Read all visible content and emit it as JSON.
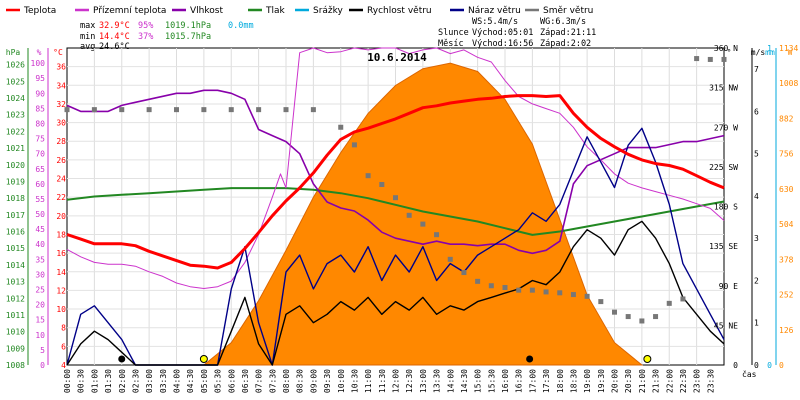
{
  "chart_data": {
    "type": "line",
    "title": "10.6.2014",
    "legend": [
      {
        "name": "Teplota",
        "color": "#ff0000"
      },
      {
        "name": "Přízemní teplota",
        "color": "#cc33cc"
      },
      {
        "name": "Vlhkost",
        "color": "#8800aa"
      },
      {
        "name": "Tlak",
        "color": "#228822"
      },
      {
        "name": "Srážky",
        "color": "#00aadd"
      },
      {
        "name": "Rychlost větru",
        "color": "#000000"
      },
      {
        "name": "Náraz větru",
        "color": "#000088"
      },
      {
        "name": "Směr větru",
        "color": "#777777"
      }
    ],
    "stats": {
      "max_label": "max",
      "max_temp": "32.9°C",
      "max_hum": "95%",
      "max_pres": "1019.1hPa",
      "max_rain": "0.0mm",
      "min_label": "min",
      "min_temp": "14.4°C",
      "min_hum": "37%",
      "min_pres": "1015.7hPa",
      "avg_label": "avg",
      "avg_temp": "24.6°C"
    },
    "info": {
      "ws": "WS:5.4m/s",
      "wg": "WG:6.3m/s",
      "sun_label": "Slunce",
      "sun_rise": "Východ:05:01",
      "sun_set": "Západ:21:11",
      "moon_label": "Měsíc",
      "moon_rise": "Východ:16:56",
      "moon_set": "Západ:2:02"
    },
    "x_label": "čas",
    "x_ticks": [
      "00:00",
      "00:30",
      "01:00",
      "01:30",
      "02:00",
      "02:30",
      "03:00",
      "03:30",
      "04:00",
      "04:30",
      "05:00",
      "05:30",
      "06:00",
      "06:30",
      "07:00",
      "07:30",
      "08:00",
      "08:30",
      "09:00",
      "09:30",
      "10:00",
      "10:30",
      "11:00",
      "11:30",
      "12:00",
      "12:30",
      "13:00",
      "13:30",
      "14:00",
      "14:30",
      "15:00",
      "15:30",
      "16:00",
      "16:30",
      "17:00",
      "17:30",
      "18:00",
      "18:30",
      "19:00",
      "19:30",
      "20:00",
      "20:30",
      "21:00",
      "21:30",
      "22:00",
      "22:30",
      "23:00",
      "23:30"
    ],
    "axes": {
      "pressure": {
        "unit": "hPa",
        "range": [
          1008,
          1027
        ],
        "ticks": [
          "1008",
          "1009",
          "1010",
          "1011",
          "1012",
          "1013",
          "1014",
          "1015",
          "1016",
          "1017",
          "1018",
          "1019",
          "1020",
          "1021",
          "1022",
          "1023",
          "1024",
          "1025",
          "1026"
        ]
      },
      "humidity": {
        "unit": "%",
        "range": [
          0,
          105
        ],
        "ticks": [
          "0",
          "5",
          "10",
          "15",
          "20",
          "25",
          "30",
          "35",
          "40",
          "45",
          "50",
          "55",
          "60",
          "65",
          "70",
          "75",
          "80",
          "85",
          "90",
          "95",
          "100"
        ]
      },
      "temperature": {
        "unit": "°C",
        "range": [
          4,
          38
        ],
        "ticks": [
          "4",
          "6",
          "8",
          "10",
          "12",
          "14",
          "16",
          "18",
          "20",
          "22",
          "24",
          "26",
          "28",
          "30",
          "32",
          "34",
          "36"
        ]
      },
      "direction": {
        "unit": "°",
        "range": [
          0,
          360
        ],
        "ticks": [
          "0",
          "45 NE",
          "90 E",
          "135 SE",
          "180 S",
          "225 SW",
          "270 W",
          "315 NW",
          "360 N"
        ]
      },
      "wind": {
        "unit": "m/s",
        "range": [
          0,
          7.5
        ],
        "ticks": [
          "0",
          "1",
          "2",
          "3",
          "4",
          "5",
          "6",
          "7"
        ]
      },
      "rain": {
        "unit": "mm",
        "range": [
          0,
          1
        ],
        "ticks": [
          "0",
          "1"
        ]
      },
      "solar": {
        "unit": "W",
        "range": [
          0,
          1134
        ],
        "ticks": [
          "0",
          "126",
          "252",
          "378",
          "504",
          "630",
          "756",
          "882",
          "1008",
          "1134"
        ]
      }
    },
    "series": [
      {
        "name": "Teplota",
        "axis": "temperature",
        "x": [
          0,
          0.5,
          1,
          1.5,
          2,
          2.5,
          3,
          3.5,
          4,
          4.5,
          5,
          5.5,
          6,
          6.5,
          7,
          7.5,
          8,
          8.5,
          9,
          9.5,
          10,
          10.5,
          11,
          11.5,
          12,
          12.5,
          13,
          13.5,
          14,
          14.5,
          15,
          15.5,
          16,
          16.5,
          17,
          17.5,
          18,
          18.5,
          19,
          19.5,
          20,
          20.5,
          21,
          21.5,
          22,
          22.5,
          23,
          23.5,
          24
        ],
        "values": [
          18,
          17.5,
          17,
          17,
          17,
          16.8,
          16.2,
          15.7,
          15.2,
          14.7,
          14.6,
          14.4,
          15,
          16.5,
          18.2,
          20,
          21.6,
          23,
          24.6,
          26.5,
          28.2,
          29,
          29.4,
          29.9,
          30.4,
          31,
          31.6,
          31.8,
          32.1,
          32.3,
          32.5,
          32.6,
          32.8,
          32.9,
          32.9,
          32.8,
          32.9,
          31,
          29.5,
          28.3,
          27.4,
          26.6,
          26,
          25.6,
          25.4,
          25,
          24.3,
          23.6,
          23
        ]
      },
      {
        "name": "Přízemní teplota",
        "axis": "temperature",
        "x": [
          0,
          0.5,
          1,
          1.5,
          2,
          2.5,
          3,
          3.5,
          4,
          4.5,
          5,
          5.5,
          6,
          6.5,
          7,
          7.5,
          7.8,
          8,
          8.5,
          9,
          9.5,
          10,
          10.5,
          11,
          11.5,
          12,
          12.5,
          13,
          13.5,
          14,
          14.5,
          15,
          15.5,
          16,
          16.5,
          17,
          17.5,
          18,
          18.5,
          19,
          19.5,
          20,
          20.5,
          21,
          21.5,
          22,
          22.5,
          23,
          23.5,
          24
        ],
        "values": [
          16.4,
          15.6,
          15,
          14.8,
          14.8,
          14.6,
          14,
          13.5,
          12.8,
          12.4,
          12.2,
          12.4,
          13,
          15,
          18,
          22,
          24.5,
          23,
          37.5,
          38,
          37.5,
          37.6,
          38,
          37.8,
          38,
          38,
          37.4,
          37.8,
          38,
          37.4,
          37.8,
          37,
          36.5,
          34.5,
          32.8,
          32,
          31.5,
          31,
          29.5,
          27.4,
          26,
          24.5,
          23.5,
          23,
          22.6,
          22.2,
          21.8,
          21.3,
          20.8,
          19.5
        ]
      },
      {
        "name": "Vlhkost",
        "axis": "humidity",
        "x": [
          0,
          0.5,
          1,
          1.5,
          2,
          2.5,
          3,
          3.5,
          4,
          4.5,
          5,
          5.5,
          6,
          6.5,
          7,
          7.5,
          8,
          8.5,
          9,
          9.5,
          10,
          10.5,
          11,
          11.5,
          12,
          12.5,
          13,
          13.5,
          14,
          14.5,
          15,
          15.5,
          16,
          16.5,
          17,
          17.5,
          18,
          18.5,
          19,
          19.5,
          20,
          20.5,
          21,
          21.5,
          22,
          22.5,
          23,
          23.5,
          24
        ],
        "values": [
          86,
          84,
          84,
          84,
          86,
          87,
          88,
          89,
          90,
          90,
          91,
          91,
          90,
          88,
          78,
          76,
          74,
          70,
          60,
          54,
          52,
          51,
          48,
          44,
          42,
          41,
          40,
          41,
          40,
          40,
          39.5,
          40,
          40,
          38,
          37,
          38,
          41,
          60,
          66,
          68,
          70,
          72,
          72,
          72,
          73,
          74,
          74,
          75,
          76
        ]
      },
      {
        "name": "Tlak",
        "axis": "pressure",
        "x": [
          0,
          1,
          2,
          3,
          4,
          5,
          6,
          7,
          8,
          9,
          10,
          11,
          12,
          13,
          14,
          15,
          16,
          17,
          18,
          19,
          20,
          21,
          22,
          23,
          24
        ],
        "values": [
          1017.9,
          1018.1,
          1018.2,
          1018.3,
          1018.4,
          1018.5,
          1018.6,
          1018.6,
          1018.6,
          1018.5,
          1018.3,
          1018.0,
          1017.6,
          1017.2,
          1016.9,
          1016.6,
          1016.2,
          1015.8,
          1016.0,
          1016.3,
          1016.6,
          1016.9,
          1017.2,
          1017.5,
          1017.8
        ]
      },
      {
        "name": "Rychlost větru",
        "axis": "wind",
        "x": [
          0,
          0.5,
          1,
          1.5,
          2,
          2.5,
          3,
          3.5,
          4,
          4.5,
          5,
          5.5,
          6,
          6.5,
          7,
          7.5,
          8,
          8.5,
          9,
          9.5,
          10,
          10.5,
          11,
          11.5,
          12,
          12.5,
          13,
          13.5,
          14,
          14.5,
          15,
          15.5,
          16,
          16.5,
          17,
          17.5,
          18,
          18.5,
          19,
          19.5,
          20,
          20.5,
          21,
          21.5,
          22,
          22.5,
          23,
          23.5,
          24
        ],
        "values": [
          0,
          0.5,
          0.8,
          0.6,
          0.3,
          0,
          0,
          0,
          0,
          0,
          0,
          0,
          0.8,
          1.6,
          0.5,
          0,
          1.2,
          1.4,
          1.0,
          1.2,
          1.5,
          1.3,
          1.6,
          1.2,
          1.5,
          1.3,
          1.6,
          1.2,
          1.4,
          1.3,
          1.5,
          1.6,
          1.7,
          1.8,
          2.0,
          1.9,
          2.2,
          2.8,
          3.2,
          3.0,
          2.6,
          3.2,
          3.4,
          3.0,
          2.4,
          1.6,
          1.2,
          0.8,
          0.5
        ]
      },
      {
        "name": "Náraz větru",
        "axis": "wind",
        "x": [
          0,
          0.5,
          1,
          1.5,
          2,
          2.5,
          3,
          3.5,
          4,
          4.5,
          5,
          5.5,
          6,
          6.5,
          7,
          7.5,
          8,
          8.5,
          9,
          9.5,
          10,
          10.5,
          11,
          11.5,
          12,
          12.5,
          13,
          13.5,
          14,
          14.5,
          15,
          15.5,
          16,
          16.5,
          17,
          17.5,
          18,
          18.5,
          19,
          19.5,
          20,
          20.5,
          21,
          21.5,
          22,
          22.5,
          23,
          23.5,
          24
        ],
        "values": [
          0,
          1.2,
          1.4,
          1.0,
          0.6,
          0,
          0,
          0,
          0,
          0,
          0,
          0,
          1.8,
          2.8,
          1.0,
          0,
          2.2,
          2.6,
          1.8,
          2.4,
          2.6,
          2.2,
          2.8,
          2.0,
          2.6,
          2.2,
          2.8,
          2.0,
          2.4,
          2.2,
          2.6,
          2.8,
          3.0,
          3.2,
          3.6,
          3.4,
          3.8,
          4.6,
          5.4,
          4.8,
          4.2,
          5.2,
          5.6,
          4.8,
          3.8,
          2.4,
          1.8,
          1.2,
          0.6
        ]
      },
      {
        "name": "Směr větru",
        "axis": "direction",
        "x": [
          0,
          1,
          2,
          3,
          4,
          5,
          6,
          7,
          8,
          9,
          10,
          10.5,
          11,
          11.5,
          12,
          12.5,
          13,
          13.5,
          14,
          14.5,
          15,
          15.5,
          16,
          16.5,
          17,
          17.5,
          18,
          18.5,
          19,
          19.5,
          20,
          20.5,
          21,
          21.5,
          22,
          22.5,
          23,
          23.5,
          24
        ],
        "values": [
          290,
          290,
          290,
          290,
          290,
          290,
          290,
          290,
          290,
          290,
          270,
          250,
          215,
          205,
          190,
          170,
          160,
          148,
          120,
          105,
          95,
          90,
          88,
          85,
          85,
          83,
          82,
          80,
          78,
          72,
          60,
          55,
          50,
          55,
          70,
          75,
          348,
          347,
          347
        ]
      },
      {
        "name": "Slunce",
        "axis": "solar",
        "x": [
          5,
          6,
          7,
          8,
          9,
          10,
          11,
          12,
          13,
          14,
          15,
          16,
          17,
          18,
          19,
          20,
          21
        ],
        "values": [
          0,
          80,
          230,
          410,
          600,
          760,
          900,
          1000,
          1060,
          1080,
          1050,
          950,
          790,
          520,
          250,
          80,
          0
        ]
      }
    ],
    "markers": {
      "sunrise_x": 5.0,
      "sunset_x": 21.2,
      "moonrise_x": 16.9,
      "moonset_x": 2.0
    }
  }
}
